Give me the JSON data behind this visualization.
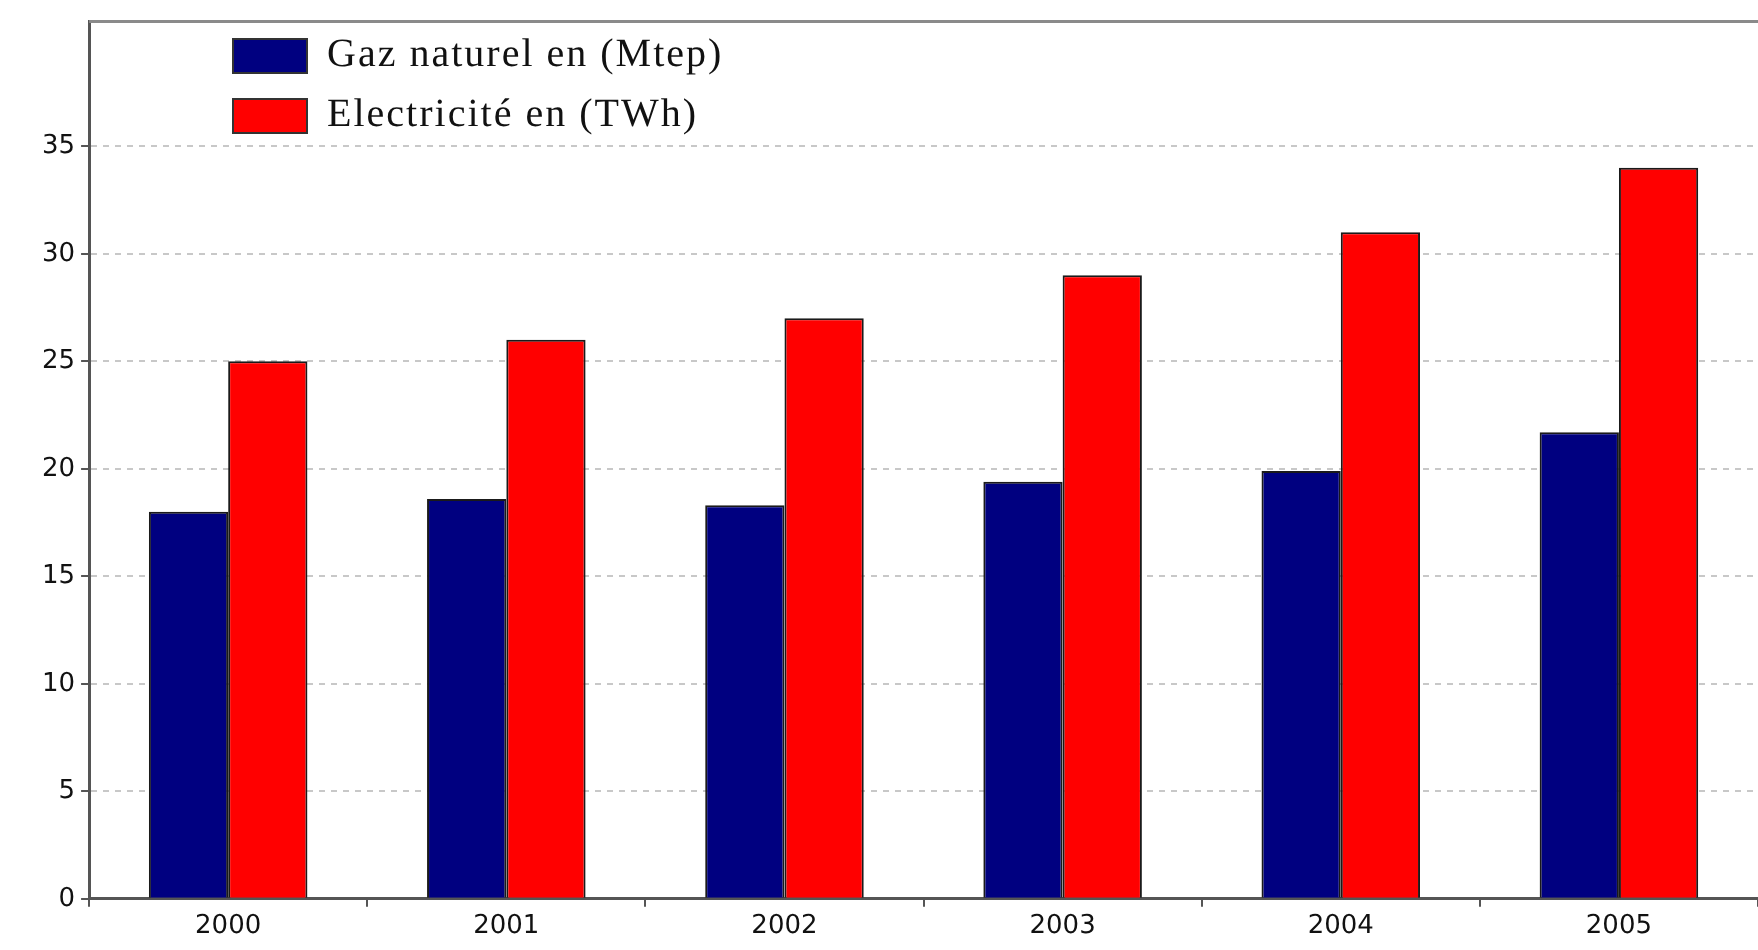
{
  "chart_data": {
    "type": "bar",
    "categories": [
      "2000",
      "2001",
      "2002",
      "2003",
      "2004",
      "2005"
    ],
    "series": [
      {
        "name": "Gaz naturel en (Mtep)",
        "color": "#000080",
        "values": [
          18,
          18.6,
          18.3,
          19.4,
          19.9,
          21.7
        ]
      },
      {
        "name": "Electricité en (TWh)",
        "color": "#ff0000",
        "values": [
          25,
          26,
          27,
          29,
          31,
          34
        ]
      }
    ],
    "ylim": [
      0,
      40.8
    ],
    "yticks": [
      0,
      5,
      10,
      15,
      20,
      25,
      30,
      35
    ],
    "grid": "y",
    "legend": "top left"
  }
}
